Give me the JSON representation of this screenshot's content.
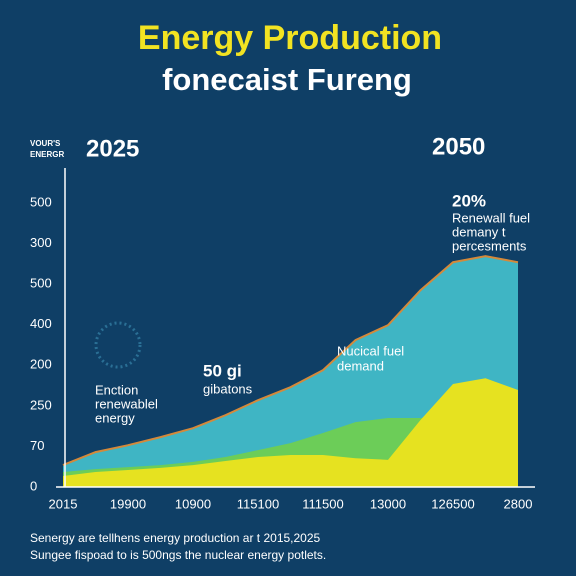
{
  "chart_data": {
    "type": "area",
    "title": "Energy Production",
    "subtitle": "fonecaist Fureng",
    "axis_label": [
      "VOUR'S",
      "ENERGR"
    ],
    "start_label": "2025",
    "end_label": "2050",
    "y_labels": [
      "0",
      "70",
      "250",
      "200",
      "400",
      "500",
      "300",
      "500"
    ],
    "categories": [
      "2015",
      "19900",
      "10900",
      "115100",
      "111500",
      "13000",
      "126500",
      "2800"
    ],
    "xlim": [
      0,
      7
    ],
    "ylim": [
      0,
      7
    ],
    "x": [
      0,
      0.5,
      1,
      1.5,
      2,
      2.5,
      3,
      3.5,
      4,
      4.5,
      5,
      5.5,
      6,
      6.5,
      7
    ],
    "series": [
      {
        "color": "#3fb5c4",
        "values": [
          0.54,
          0.86,
          1.03,
          1.23,
          1.45,
          1.77,
          2.14,
          2.46,
          2.88,
          3.62,
          3.99,
          4.85,
          5.54,
          5.69,
          5.54
        ]
      },
      {
        "color": "#6ccd58",
        "values": [
          0.37,
          0.44,
          0.49,
          0.54,
          0.62,
          0.74,
          0.91,
          1.08,
          1.33,
          1.6,
          1.7,
          1.7,
          1.75,
          1.77,
          1.77
        ]
      },
      {
        "color": "#e6e220",
        "values": [
          0.27,
          0.37,
          0.42,
          0.47,
          0.54,
          0.64,
          0.74,
          0.79,
          0.79,
          0.71,
          0.67,
          1.65,
          2.54,
          2.68,
          2.39
        ]
      }
    ],
    "outline_color": "#d4893a",
    "annotations": [
      {
        "lines": [
          "Enction",
          "renewablel",
          "energy"
        ]
      },
      {
        "lines": [
          "50 gi",
          "gibatons"
        ]
      },
      {
        "lines": [
          "Nucical fuel",
          "demand"
        ]
      },
      {
        "lines": [
          "20%",
          "Renewall fuel",
          "demany t",
          "percesments"
        ]
      }
    ],
    "footnotes": [
      "Senergy are tellhens energy production ar t 2015,2025",
      "Sungee fispoad to is 500ngs the nuclear energy potlets."
    ]
  }
}
